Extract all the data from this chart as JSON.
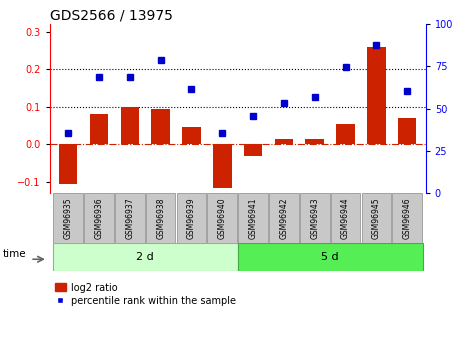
{
  "title": "GDS2566 / 13975",
  "samples": [
    "GSM96935",
    "GSM96936",
    "GSM96937",
    "GSM96938",
    "GSM96939",
    "GSM96940",
    "GSM96941",
    "GSM96942",
    "GSM96943",
    "GSM96944",
    "GSM96945",
    "GSM96946"
  ],
  "log2_ratio": [
    -0.105,
    0.08,
    0.1,
    0.095,
    0.045,
    -0.115,
    -0.03,
    0.015,
    0.015,
    0.055,
    0.26,
    0.07
  ],
  "percentile_rank": [
    0.03,
    0.18,
    0.18,
    0.225,
    0.148,
    0.03,
    0.075,
    0.11,
    0.125,
    0.205,
    0.265,
    0.142
  ],
  "group1_label": "2 d",
  "group2_label": "5 d",
  "group1_indices": [
    0,
    1,
    2,
    3,
    4,
    5
  ],
  "group2_indices": [
    6,
    7,
    8,
    9,
    10,
    11
  ],
  "bar_color": "#CC2200",
  "marker_color": "#0000CC",
  "group1_bg": "#CCFFCC",
  "group2_bg": "#55EE55",
  "label_bg": "#C8C8C8",
  "ylim_left": [
    -0.13,
    0.32
  ],
  "ylim_right": [
    0,
    100
  ],
  "yticks_left": [
    -0.1,
    0.0,
    0.1,
    0.2,
    0.3
  ],
  "yticks_right": [
    0,
    25,
    50,
    75,
    100
  ],
  "hlines": [
    0.1,
    0.2
  ],
  "legend_log2": "log2 ratio",
  "legend_pct": "percentile rank within the sample",
  "time_label": "time",
  "title_fontsize": 10,
  "tick_fontsize": 7,
  "label_fontsize": 8
}
